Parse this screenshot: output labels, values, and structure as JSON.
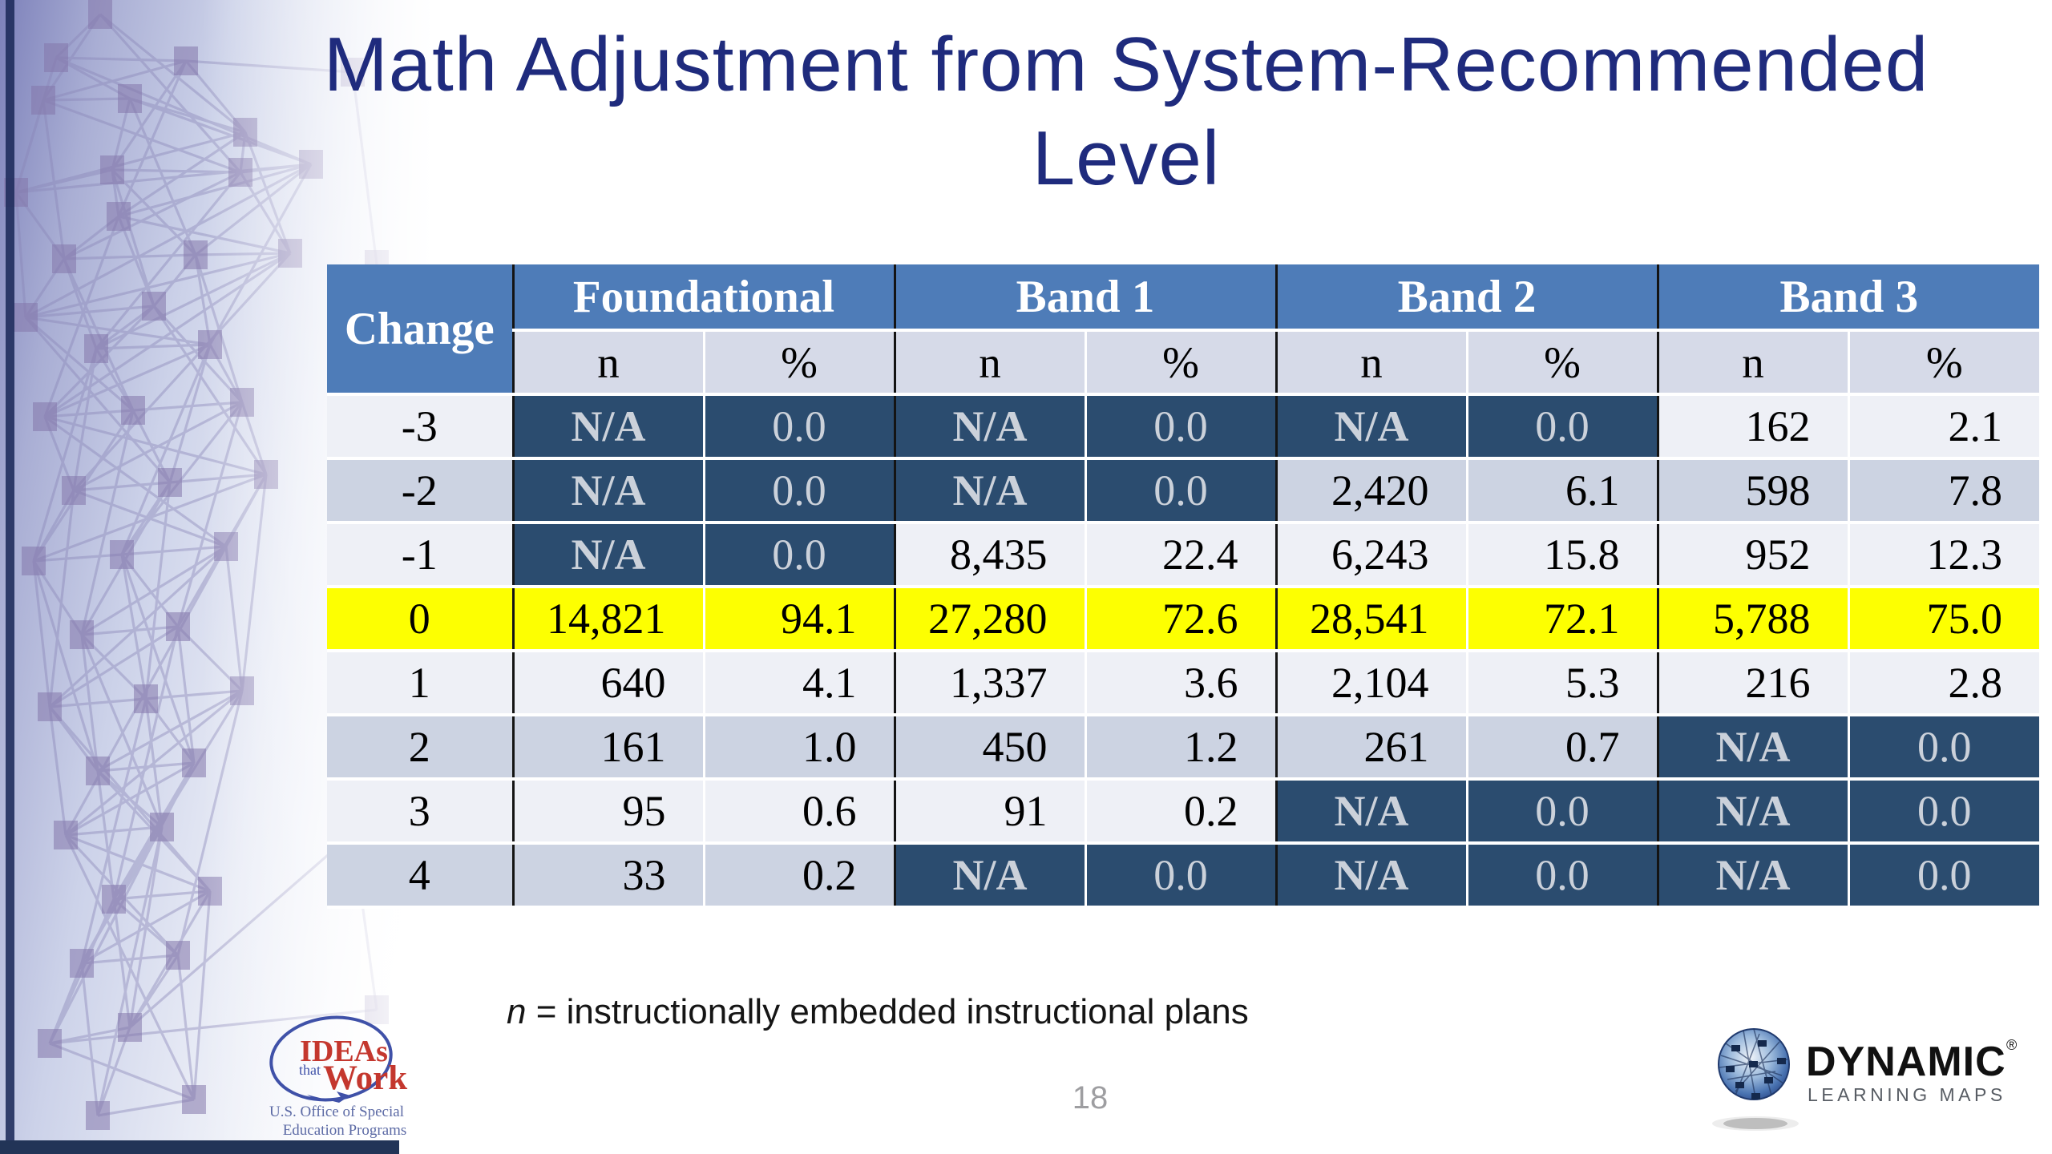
{
  "title": {
    "line1": "Math Adjustment from System-Recommended",
    "line2": "Level"
  },
  "table": {
    "row_header": "Change",
    "groups": [
      {
        "label": "Foundational"
      },
      {
        "label": "Band 1"
      },
      {
        "label": "Band 2"
      },
      {
        "label": "Band 3"
      }
    ],
    "sub_headers": [
      "n",
      "%"
    ],
    "rows": [
      {
        "change": "-3",
        "cells": [
          {
            "n": "N/A",
            "pct": "0.0",
            "na": true
          },
          {
            "n": "N/A",
            "pct": "0.0",
            "na": true
          },
          {
            "n": "N/A",
            "pct": "0.0",
            "na": true
          },
          {
            "n": "162",
            "pct": "2.1",
            "na": false
          }
        ]
      },
      {
        "change": "-2",
        "cells": [
          {
            "n": "N/A",
            "pct": "0.0",
            "na": true
          },
          {
            "n": "N/A",
            "pct": "0.0",
            "na": true
          },
          {
            "n": "2,420",
            "pct": "6.1",
            "na": false
          },
          {
            "n": "598",
            "pct": "7.8",
            "na": false
          }
        ]
      },
      {
        "change": "-1",
        "cells": [
          {
            "n": "N/A",
            "pct": "0.0",
            "na": true
          },
          {
            "n": "8,435",
            "pct": "22.4",
            "na": false
          },
          {
            "n": "6,243",
            "pct": "15.8",
            "na": false
          },
          {
            "n": "952",
            "pct": "12.3",
            "na": false
          }
        ]
      },
      {
        "change": "0",
        "highlight": true,
        "cells": [
          {
            "n": "14,821",
            "pct": "94.1",
            "na": false
          },
          {
            "n": "27,280",
            "pct": "72.6",
            "na": false
          },
          {
            "n": "28,541",
            "pct": "72.1",
            "na": false
          },
          {
            "n": "5,788",
            "pct": "75.0",
            "na": false
          }
        ]
      },
      {
        "change": "1",
        "cells": [
          {
            "n": "640",
            "pct": "4.1",
            "na": false
          },
          {
            "n": "1,337",
            "pct": "3.6",
            "na": false
          },
          {
            "n": "2,104",
            "pct": "5.3",
            "na": false
          },
          {
            "n": "216",
            "pct": "2.8",
            "na": false
          }
        ]
      },
      {
        "change": "2",
        "cells": [
          {
            "n": "161",
            "pct": "1.0",
            "na": false
          },
          {
            "n": "450",
            "pct": "1.2",
            "na": false
          },
          {
            "n": "261",
            "pct": "0.7",
            "na": false
          },
          {
            "n": "N/A",
            "pct": "0.0",
            "na": true
          }
        ]
      },
      {
        "change": "3",
        "cells": [
          {
            "n": "95",
            "pct": "0.6",
            "na": false
          },
          {
            "n": "91",
            "pct": "0.2",
            "na": false
          },
          {
            "n": "N/A",
            "pct": "0.0",
            "na": true
          },
          {
            "n": "N/A",
            "pct": "0.0",
            "na": true
          }
        ]
      },
      {
        "change": "4",
        "cells": [
          {
            "n": "33",
            "pct": "0.2",
            "na": false
          },
          {
            "n": "N/A",
            "pct": "0.0",
            "na": true
          },
          {
            "n": "N/A",
            "pct": "0.0",
            "na": true
          },
          {
            "n": "N/A",
            "pct": "0.0",
            "na": true
          }
        ]
      }
    ]
  },
  "footnote": {
    "symbol": "n",
    "text": " = instructionally embedded instructional plans"
  },
  "page_number": "18",
  "logos": {
    "ideas": {
      "word1": "IDEAs",
      "word2": "that",
      "word3": "Work",
      "caption1": "U.S. Office of Special",
      "caption2": "Education Programs"
    },
    "dlm": {
      "name": "DYNAMIC",
      "reg": "®",
      "sub": "LEARNING MAPS"
    }
  },
  "colors": {
    "header_blue": "#4e7cb8",
    "na_cell_navy": "#2b4c6f",
    "highlight_yellow": "#fdff01",
    "stripe_light": "#eef0f6",
    "stripe_dark": "#ccd3e2",
    "title_navy": "#1f2b7d"
  }
}
